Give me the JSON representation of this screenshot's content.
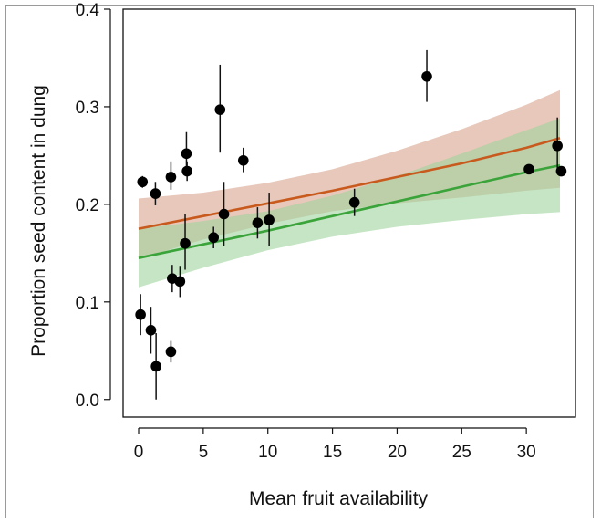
{
  "chart_data": {
    "type": "scatter",
    "title": "",
    "xlabel": "Mean fruit availability",
    "ylabel": "Proportion seed content in dung",
    "xlim": [
      -1.2,
      33.8
    ],
    "ylim": [
      -0.018,
      0.4
    ],
    "x_ticks": [
      0,
      5,
      10,
      15,
      20,
      25,
      30
    ],
    "x_tick_labels": [
      "0",
      "5",
      "10",
      "15",
      "20",
      "25",
      "30"
    ],
    "y_ticks": [
      0.0,
      0.1,
      0.2,
      0.3,
      0.4
    ],
    "y_tick_labels": [
      "0.0",
      "0.1",
      "0.2",
      "0.3",
      "0.4"
    ],
    "grid": false,
    "legend": "none",
    "points": [
      {
        "x": 0.15,
        "y": 0.087,
        "lo": 0.066,
        "hi": 0.108
      },
      {
        "x": 0.3,
        "y": 0.223,
        "lo": 0.217,
        "hi": 0.229
      },
      {
        "x": 0.95,
        "y": 0.071,
        "lo": 0.047,
        "hi": 0.095
      },
      {
        "x": 1.3,
        "y": 0.211,
        "lo": 0.199,
        "hi": 0.223
      },
      {
        "x": 1.35,
        "y": 0.034,
        "lo": 0.0,
        "hi": 0.068
      },
      {
        "x": 2.5,
        "y": 0.049,
        "lo": 0.038,
        "hi": 0.06
      },
      {
        "x": 2.5,
        "y": 0.228,
        "lo": 0.215,
        "hi": 0.244
      },
      {
        "x": 2.6,
        "y": 0.124,
        "lo": 0.11,
        "hi": 0.138
      },
      {
        "x": 3.2,
        "y": 0.121,
        "lo": 0.105,
        "hi": 0.137
      },
      {
        "x": 3.6,
        "y": 0.16,
        "lo": 0.133,
        "hi": 0.19
      },
      {
        "x": 3.7,
        "y": 0.252,
        "lo": 0.232,
        "hi": 0.274
      },
      {
        "x": 3.75,
        "y": 0.234,
        "lo": 0.224,
        "hi": 0.244
      },
      {
        "x": 5.8,
        "y": 0.166,
        "lo": 0.155,
        "hi": 0.177
      },
      {
        "x": 6.3,
        "y": 0.297,
        "lo": 0.253,
        "hi": 0.343
      },
      {
        "x": 6.6,
        "y": 0.19,
        "lo": 0.157,
        "hi": 0.223
      },
      {
        "x": 8.1,
        "y": 0.245,
        "lo": 0.233,
        "hi": 0.258
      },
      {
        "x": 9.2,
        "y": 0.181,
        "lo": 0.165,
        "hi": 0.197
      },
      {
        "x": 10.1,
        "y": 0.184,
        "lo": 0.157,
        "hi": 0.212
      },
      {
        "x": 16.7,
        "y": 0.202,
        "lo": 0.188,
        "hi": 0.216
      },
      {
        "x": 22.3,
        "y": 0.331,
        "lo": 0.305,
        "hi": 0.358
      },
      {
        "x": 30.2,
        "y": 0.236,
        "lo": 0.231,
        "hi": 0.241
      },
      {
        "x": 32.4,
        "y": 0.26,
        "lo": 0.233,
        "hi": 0.289
      },
      {
        "x": 32.7,
        "y": 0.234,
        "lo": 0.229,
        "hi": 0.239
      }
    ],
    "fits": [
      {
        "color": "#c85a1e",
        "band_color": "#d9a48c",
        "x": [
          0.0,
          5,
          10,
          15,
          20,
          25,
          30,
          32.6
        ],
        "y": [
          0.175,
          0.188,
          0.201,
          0.214,
          0.228,
          0.242,
          0.258,
          0.268
        ],
        "lo": [
          0.144,
          0.164,
          0.18,
          0.193,
          0.201,
          0.207,
          0.214,
          0.217
        ],
        "hi": [
          0.206,
          0.212,
          0.222,
          0.236,
          0.255,
          0.277,
          0.302,
          0.317
        ]
      },
      {
        "color": "#3aa33a",
        "band_color": "#9fd49f",
        "x": [
          0.0,
          5,
          10,
          15,
          20,
          25,
          30,
          32.6
        ],
        "y": [
          0.145,
          0.159,
          0.173,
          0.188,
          0.203,
          0.218,
          0.233,
          0.24
        ],
        "lo": [
          0.115,
          0.135,
          0.153,
          0.167,
          0.177,
          0.184,
          0.19,
          0.192
        ],
        "hi": [
          0.175,
          0.183,
          0.193,
          0.209,
          0.229,
          0.252,
          0.276,
          0.288
        ]
      }
    ]
  }
}
